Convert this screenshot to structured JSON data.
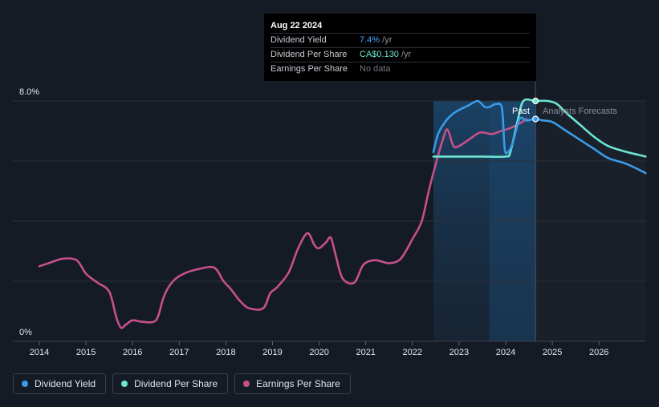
{
  "tooltip": {
    "date": "Aug 22 2024",
    "rows": [
      {
        "label": "Dividend Yield",
        "value": "7.4%",
        "unit": " /yr"
      },
      {
        "label": "Dividend Per Share",
        "value": "CA$0.130",
        "unit": " /yr"
      },
      {
        "label": "Earnings Per Share",
        "value": "No data",
        "unit": ""
      }
    ]
  },
  "region_labels": {
    "past": "Past",
    "forecast": "Analysts Forecasts"
  },
  "legend": [
    {
      "label": "Dividend Yield",
      "color": "#3b9ae8"
    },
    {
      "label": "Dividend Per Share",
      "color": "#6ee6d2"
    },
    {
      "label": "Earnings Per Share",
      "color": "#c7508a"
    }
  ],
  "chart_data": {
    "type": "line",
    "y_axis_labels": [
      "8.0%",
      "0%"
    ],
    "ylim": [
      0,
      8
    ],
    "xlim": [
      2013.8,
      2027.0
    ],
    "x_ticks": [
      2014,
      2015,
      2016,
      2017,
      2018,
      2019,
      2020,
      2021,
      2022,
      2023,
      2024,
      2025,
      2026
    ],
    "grid": true,
    "past_shaded_range": [
      2022.45,
      2024.64
    ],
    "forecast_shaded_start": 2023.65,
    "marker_x": 2024.64,
    "series": [
      {
        "name": "Dividend Yield",
        "color": "#3b9ae8",
        "x": [
          2022.45,
          2022.55,
          2022.7,
          2022.85,
          2023.0,
          2023.2,
          2023.4,
          2023.55,
          2023.65,
          2023.8,
          2023.92,
          2023.98,
          2024.05,
          2024.15,
          2024.3,
          2024.45,
          2024.64,
          2024.8,
          2025.0,
          2025.3,
          2025.6,
          2025.9,
          2026.2,
          2026.6,
          2027.0
        ],
        "y": [
          6.3,
          6.9,
          7.3,
          7.55,
          7.7,
          7.85,
          8.0,
          7.8,
          7.8,
          7.9,
          7.75,
          6.4,
          6.3,
          6.6,
          7.4,
          7.35,
          7.4,
          7.35,
          7.3,
          7.0,
          6.7,
          6.4,
          6.1,
          5.9,
          5.6
        ]
      },
      {
        "name": "Dividend Per Share",
        "color": "#6ee6d2",
        "x": [
          2022.45,
          2022.7,
          2023.0,
          2023.5,
          2024.0,
          2024.1,
          2024.25,
          2024.38,
          2024.64,
          2024.9,
          2025.1,
          2025.3,
          2025.6,
          2025.9,
          2026.2,
          2026.6,
          2027.0
        ],
        "y": [
          6.15,
          6.15,
          6.15,
          6.15,
          6.15,
          6.3,
          7.3,
          8.0,
          8.0,
          8.0,
          7.9,
          7.6,
          7.2,
          6.8,
          6.5,
          6.3,
          6.15
        ]
      },
      {
        "name": "Earnings Per Share",
        "color": "#c7508a",
        "x": [
          2014.0,
          2014.2,
          2014.5,
          2014.8,
          2015.0,
          2015.25,
          2015.5,
          2015.65,
          2015.75,
          2015.85,
          2016.0,
          2016.2,
          2016.5,
          2016.65,
          2016.75,
          2016.9,
          2017.1,
          2017.4,
          2017.75,
          2017.95,
          2018.1,
          2018.3,
          2018.5,
          2018.8,
          2018.95,
          2019.1,
          2019.35,
          2019.55,
          2019.75,
          2019.9,
          2020.0,
          2020.15,
          2020.25,
          2020.35,
          2020.5,
          2020.75,
          2020.95,
          2021.2,
          2021.5,
          2021.75,
          2022.0,
          2022.2,
          2022.35,
          2022.5,
          2022.65,
          2022.75,
          2022.88,
          2023.0,
          2023.2,
          2023.45,
          2023.7,
          2023.9,
          2024.1,
          2024.3,
          2024.45
        ],
        "y": [
          2.5,
          2.6,
          2.75,
          2.7,
          2.25,
          1.95,
          1.65,
          0.8,
          0.45,
          0.55,
          0.7,
          0.65,
          0.7,
          1.4,
          1.75,
          2.05,
          2.25,
          2.4,
          2.45,
          2.0,
          1.75,
          1.35,
          1.1,
          1.1,
          1.6,
          1.8,
          2.3,
          3.1,
          3.6,
          3.2,
          3.1,
          3.3,
          3.45,
          2.9,
          2.1,
          1.95,
          2.55,
          2.7,
          2.6,
          2.75,
          3.4,
          4.0,
          5.0,
          5.9,
          6.7,
          7.05,
          6.5,
          6.5,
          6.7,
          6.95,
          6.9,
          7.0,
          7.1,
          7.25,
          7.4
        ]
      }
    ]
  }
}
